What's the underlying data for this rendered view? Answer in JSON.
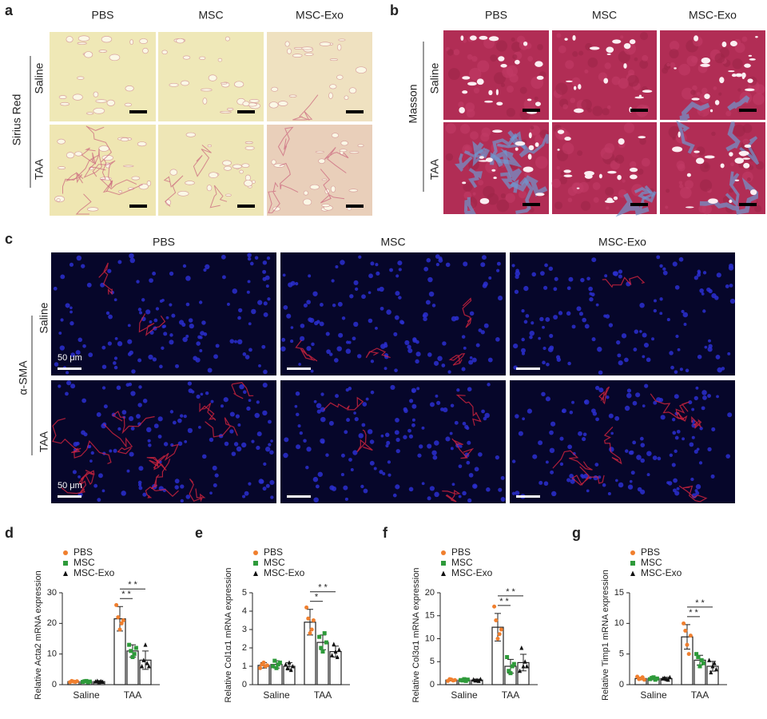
{
  "panels": {
    "a": {
      "label": "a",
      "columns": [
        "PBS",
        "MSC",
        "MSC-Exo"
      ],
      "rows": [
        "Saline",
        "TAA"
      ],
      "stain": "Sirius Red"
    },
    "b": {
      "label": "b",
      "columns": [
        "PBS",
        "MSC",
        "MSC-Exo"
      ],
      "rows": [
        "Saline",
        "TAA"
      ],
      "stain": "Masson"
    },
    "c": {
      "label": "c",
      "columns": [
        "PBS",
        "MSC",
        "MSC-Exo"
      ],
      "rows": [
        "Saline",
        "TAA"
      ],
      "stain": "α-SMA",
      "scale": "50 μm"
    }
  },
  "chart_data": [
    {
      "type": "bar",
      "panel": "d",
      "ylabel": "Relative Acta2 mRNA expression",
      "categories": [
        "Saline",
        "TAA"
      ],
      "ylim": [
        0,
        30
      ],
      "yticks": [
        0,
        10,
        20,
        30
      ],
      "series": [
        {
          "name": "PBS",
          "color": "#f07f2e",
          "values": [
            1,
            21.5
          ],
          "errors": [
            0.3,
            4
          ],
          "points": [
            [
              0.8,
              1.2,
              1.0,
              0.9,
              1.1
            ],
            [
              26,
              22,
              18,
              20,
              21
            ]
          ]
        },
        {
          "name": "MSC",
          "color": "#2e9a3a",
          "values": [
            1,
            11
          ],
          "errors": [
            0.3,
            2
          ],
          "points": [
            [
              0.9,
              1.1,
              1.2,
              0.8,
              1.0
            ],
            [
              13,
              11,
              9,
              10,
              12
            ]
          ]
        },
        {
          "name": "MSC-Exo",
          "color": "#111111",
          "values": [
            1,
            8
          ],
          "errors": [
            0.3,
            3
          ],
          "points": [
            [
              1.0,
              1.2,
              0.8,
              1.1,
              0.9
            ],
            [
              6,
              8,
              13,
              7,
              6
            ]
          ]
        }
      ],
      "significance": [
        {
          "category": "TAA",
          "between": [
            "PBS",
            "MSC"
          ],
          "label": "* *"
        },
        {
          "category": "TAA",
          "between": [
            "PBS",
            "MSC-Exo"
          ],
          "label": "* *"
        }
      ]
    },
    {
      "type": "bar",
      "panel": "e",
      "ylabel": "Relative Col1α1 mRNA expression",
      "categories": [
        "Saline",
        "TAA"
      ],
      "ylim": [
        0,
        5
      ],
      "yticks": [
        0,
        1,
        2,
        3,
        4,
        5
      ],
      "series": [
        {
          "name": "PBS",
          "color": "#f07f2e",
          "values": [
            1.05,
            3.4
          ],
          "errors": [
            0.15,
            0.7
          ],
          "points": [
            [
              0.9,
              1.1,
              1.2,
              1.0,
              1.05
            ],
            [
              4.2,
              3.6,
              2.8,
              3.0,
              3.5
            ]
          ]
        },
        {
          "name": "MSC",
          "color": "#2e9a3a",
          "values": [
            1.1,
            2.3
          ],
          "errors": [
            0.2,
            0.4
          ],
          "points": [
            [
              1.0,
              1.3,
              0.9,
              1.1,
              1.2
            ],
            [
              2.6,
              2.0,
              1.8,
              2.8,
              2.3
            ]
          ]
        },
        {
          "name": "MSC-Exo",
          "color": "#111111",
          "values": [
            1.0,
            1.8
          ],
          "errors": [
            0.2,
            0.3
          ],
          "points": [
            [
              1.1,
              0.9,
              1.2,
              0.8,
              1.0
            ],
            [
              1.6,
              2.2,
              1.8,
              1.5,
              1.9
            ]
          ]
        }
      ],
      "significance": [
        {
          "category": "TAA",
          "between": [
            "PBS",
            "MSC"
          ],
          "label": "*"
        },
        {
          "category": "TAA",
          "between": [
            "PBS",
            "MSC-Exo"
          ],
          "label": "* *"
        }
      ]
    },
    {
      "type": "bar",
      "panel": "f",
      "ylabel": "Relative Col3α1 mRNA expression",
      "categories": [
        "Saline",
        "TAA"
      ],
      "ylim": [
        0,
        20
      ],
      "yticks": [
        0,
        5,
        10,
        15,
        20
      ],
      "series": [
        {
          "name": "PBS",
          "color": "#f07f2e",
          "values": [
            1,
            12.5
          ],
          "errors": [
            0.2,
            3
          ],
          "points": [
            [
              0.8,
              1.2,
              1.1,
              0.9,
              1.0
            ],
            [
              17,
              14,
              10,
              11,
              12
            ]
          ]
        },
        {
          "name": "MSC",
          "color": "#2e9a3a",
          "values": [
            1,
            4
          ],
          "errors": [
            0.2,
            1.5
          ],
          "points": [
            [
              1.0,
              0.9,
              1.2,
              0.8,
              1.1
            ],
            [
              6,
              3,
              2.5,
              4,
              4.5
            ]
          ]
        },
        {
          "name": "MSC-Exo",
          "color": "#111111",
          "values": [
            1,
            4.8
          ],
          "errors": [
            0.2,
            1.8
          ],
          "points": [
            [
              1.1,
              0.9,
              1.0,
              0.8,
              1.2
            ],
            [
              3,
              8,
              4,
              5,
              4
            ]
          ]
        }
      ],
      "significance": [
        {
          "category": "TAA",
          "between": [
            "PBS",
            "MSC"
          ],
          "label": "* *"
        },
        {
          "category": "TAA",
          "between": [
            "PBS",
            "MSC-Exo"
          ],
          "label": "* *"
        }
      ]
    },
    {
      "type": "bar",
      "panel": "g",
      "ylabel": "Relative Timp1 mRNA expression",
      "categories": [
        "Saline",
        "TAA"
      ],
      "ylim": [
        0,
        15
      ],
      "yticks": [
        0,
        5,
        10,
        15
      ],
      "series": [
        {
          "name": "PBS",
          "color": "#f07f2e",
          "values": [
            1,
            7.8
          ],
          "errors": [
            0.2,
            2
          ],
          "points": [
            [
              1.3,
              0.9,
              1.0,
              1.2,
              0.8
            ],
            [
              10,
              8.8,
              6.5,
              5,
              8
            ]
          ]
        },
        {
          "name": "MSC",
          "color": "#2e9a3a",
          "values": [
            1,
            4
          ],
          "errors": [
            0.2,
            0.8
          ],
          "points": [
            [
              0.9,
              1.1,
              1.2,
              0.8,
              1.0
            ],
            [
              5,
              4.5,
              3,
              4,
              3.5
            ]
          ]
        },
        {
          "name": "MSC-Exo",
          "color": "#111111",
          "values": [
            1,
            3
          ],
          "errors": [
            0.2,
            0.8
          ],
          "points": [
            [
              1.0,
              1.1,
              0.9,
              0.8,
              1.2
            ],
            [
              4,
              2,
              3,
              3.5,
              2.5
            ]
          ]
        }
      ],
      "significance": [
        {
          "category": "TAA",
          "between": [
            "PBS",
            "MSC"
          ],
          "label": "* *"
        },
        {
          "category": "TAA",
          "between": [
            "PBS",
            "MSC-Exo"
          ],
          "label": "* *"
        }
      ]
    }
  ]
}
